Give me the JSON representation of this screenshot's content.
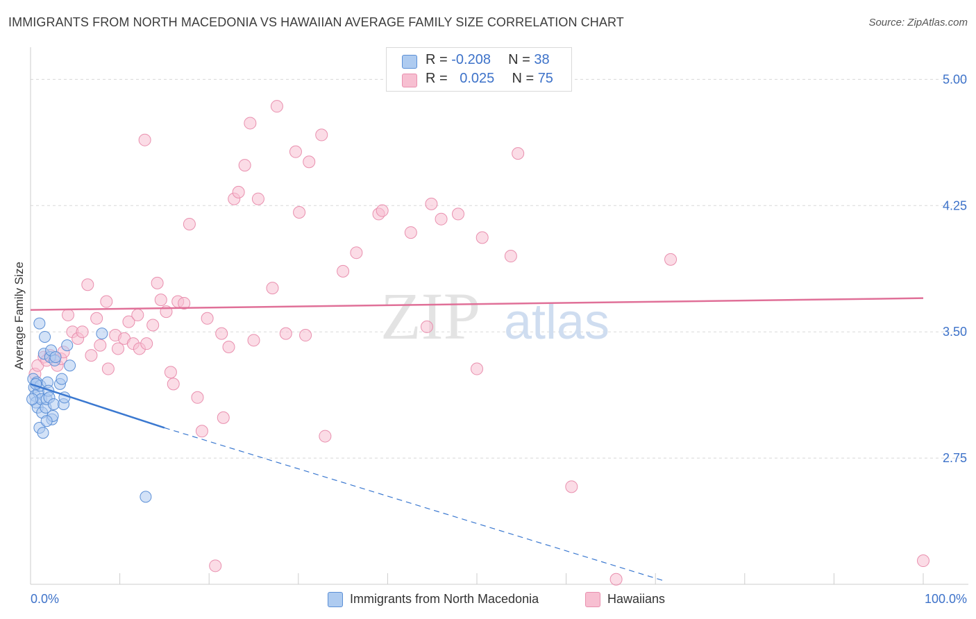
{
  "header": {
    "title": "IMMIGRANTS FROM NORTH MACEDONIA VS HAWAIIAN AVERAGE FAMILY SIZE CORRELATION CHART",
    "source": "Source: ZipAtlas.com"
  },
  "colors": {
    "blue_fill": "#aecbf0",
    "blue_stroke": "#5b8fd6",
    "blue_line": "#3a78d0",
    "pink_fill": "#f7bfd1",
    "pink_stroke": "#e98fae",
    "pink_line": "#e07098",
    "axis_text": "#3d72c9",
    "grid": "#d8d8d8"
  },
  "legend": {
    "blue": {
      "r_label": "R = ",
      "r_value": "-0.208",
      "n_label": "N = ",
      "n_value": "38"
    },
    "pink": {
      "r_label": "R = ",
      "r_value": "0.025",
      "n_label": "N = ",
      "n_value": "75"
    }
  },
  "watermark": {
    "zip": "ZIP",
    "atlas": "atlas"
  },
  "chart_data": {
    "type": "scatter",
    "title": "IMMIGRANTS FROM NORTH MACEDONIA VS HAWAIIAN AVERAGE FAMILY SIZE CORRELATION CHART",
    "xlabel": "",
    "ylabel": "Average Family Size",
    "xlim": [
      0,
      100
    ],
    "ylim": [
      2.0,
      5.15
    ],
    "x_tick_labels": [
      "0.0%",
      "100.0%"
    ],
    "y_ticks": [
      2.75,
      3.5,
      4.25,
      5.0
    ],
    "y_tick_labels": [
      "2.75",
      "3.50",
      "4.25",
      "5.00"
    ],
    "series": [
      {
        "name": "Immigrants from North Macedonia",
        "color": "blue",
        "points": [
          [
            0.3,
            3.22
          ],
          [
            0.4,
            3.17
          ],
          [
            0.5,
            3.12
          ],
          [
            0.6,
            3.08
          ],
          [
            0.7,
            3.2
          ],
          [
            0.8,
            3.05
          ],
          [
            0.9,
            3.14
          ],
          [
            1.0,
            2.93
          ],
          [
            1.1,
            3.18
          ],
          [
            1.2,
            3.1
          ],
          [
            1.0,
            3.55
          ],
          [
            1.3,
            3.02
          ],
          [
            1.4,
            2.9
          ],
          [
            1.5,
            3.37
          ],
          [
            1.6,
            3.47
          ],
          [
            1.7,
            3.05
          ],
          [
            1.8,
            3.1
          ],
          [
            1.9,
            3.2
          ],
          [
            2.0,
            3.15
          ],
          [
            2.1,
            3.11
          ],
          [
            2.2,
            3.35
          ],
          [
            2.3,
            3.39
          ],
          [
            2.4,
            2.98
          ],
          [
            2.5,
            3.0
          ],
          [
            2.6,
            3.07
          ],
          [
            2.7,
            3.33
          ],
          [
            2.8,
            3.35
          ],
          [
            3.3,
            3.19
          ],
          [
            3.5,
            3.22
          ],
          [
            3.7,
            3.07
          ],
          [
            3.8,
            3.11
          ],
          [
            4.1,
            3.42
          ],
          [
            4.4,
            3.3
          ],
          [
            8.0,
            3.49
          ],
          [
            12.9,
            2.52
          ],
          [
            0.2,
            3.1
          ],
          [
            0.6,
            3.19
          ],
          [
            1.8,
            2.97
          ]
        ]
      },
      {
        "name": "Hawaiians",
        "color": "pink",
        "points": [
          [
            0.5,
            3.25
          ],
          [
            0.8,
            3.3
          ],
          [
            1.5,
            3.35
          ],
          [
            1.8,
            3.33
          ],
          [
            2.2,
            3.36
          ],
          [
            3.0,
            3.3
          ],
          [
            3.4,
            3.34
          ],
          [
            3.7,
            3.38
          ],
          [
            4.2,
            3.6
          ],
          [
            4.7,
            3.5
          ],
          [
            5.3,
            3.46
          ],
          [
            5.8,
            3.5
          ],
          [
            6.4,
            3.78
          ],
          [
            6.8,
            3.36
          ],
          [
            7.4,
            3.58
          ],
          [
            7.8,
            3.42
          ],
          [
            8.5,
            3.68
          ],
          [
            8.7,
            3.28
          ],
          [
            9.5,
            3.48
          ],
          [
            9.8,
            3.4
          ],
          [
            10.5,
            3.46
          ],
          [
            11.0,
            3.56
          ],
          [
            11.5,
            3.43
          ],
          [
            12.0,
            3.6
          ],
          [
            12.2,
            3.4
          ],
          [
            12.8,
            4.64
          ],
          [
            13.0,
            3.43
          ],
          [
            13.7,
            3.54
          ],
          [
            14.2,
            3.79
          ],
          [
            14.6,
            3.69
          ],
          [
            15.2,
            3.62
          ],
          [
            15.7,
            3.26
          ],
          [
            16.0,
            3.19
          ],
          [
            16.5,
            3.68
          ],
          [
            17.2,
            3.67
          ],
          [
            17.8,
            4.14
          ],
          [
            18.7,
            3.11
          ],
          [
            19.2,
            2.91
          ],
          [
            19.8,
            3.58
          ],
          [
            20.7,
            2.11
          ],
          [
            21.4,
            3.49
          ],
          [
            21.6,
            2.99
          ],
          [
            22.2,
            3.41
          ],
          [
            22.8,
            4.29
          ],
          [
            23.3,
            4.33
          ],
          [
            24.0,
            4.49
          ],
          [
            24.6,
            4.74
          ],
          [
            25.0,
            3.45
          ],
          [
            25.5,
            4.29
          ],
          [
            27.1,
            3.76
          ],
          [
            27.6,
            4.84
          ],
          [
            28.6,
            3.49
          ],
          [
            29.7,
            4.57
          ],
          [
            30.1,
            4.21
          ],
          [
            30.8,
            3.48
          ],
          [
            31.2,
            4.51
          ],
          [
            32.6,
            4.67
          ],
          [
            33.0,
            2.88
          ],
          [
            35.0,
            3.86
          ],
          [
            36.5,
            3.97
          ],
          [
            39.0,
            4.2
          ],
          [
            39.4,
            4.22
          ],
          [
            42.6,
            4.09
          ],
          [
            44.4,
            3.53
          ],
          [
            44.9,
            4.26
          ],
          [
            46.0,
            4.17
          ],
          [
            47.9,
            4.2
          ],
          [
            50.0,
            3.28
          ],
          [
            50.6,
            4.06
          ],
          [
            53.8,
            3.95
          ],
          [
            54.6,
            4.56
          ],
          [
            60.6,
            2.58
          ],
          [
            65.6,
            2.03
          ],
          [
            71.7,
            3.93
          ],
          [
            100.0,
            2.14
          ]
        ]
      }
    ],
    "trend_lines": [
      {
        "series": "Immigrants from North Macedonia",
        "x": [
          0,
          15
        ],
        "y": [
          3.19,
          2.93
        ],
        "dashed_to_x": 71,
        "dashed_to_y": 2.02
      },
      {
        "series": "Hawaiians",
        "x": [
          0,
          100
        ],
        "y": [
          3.63,
          3.7
        ]
      }
    ],
    "legend_position": "top-center"
  }
}
